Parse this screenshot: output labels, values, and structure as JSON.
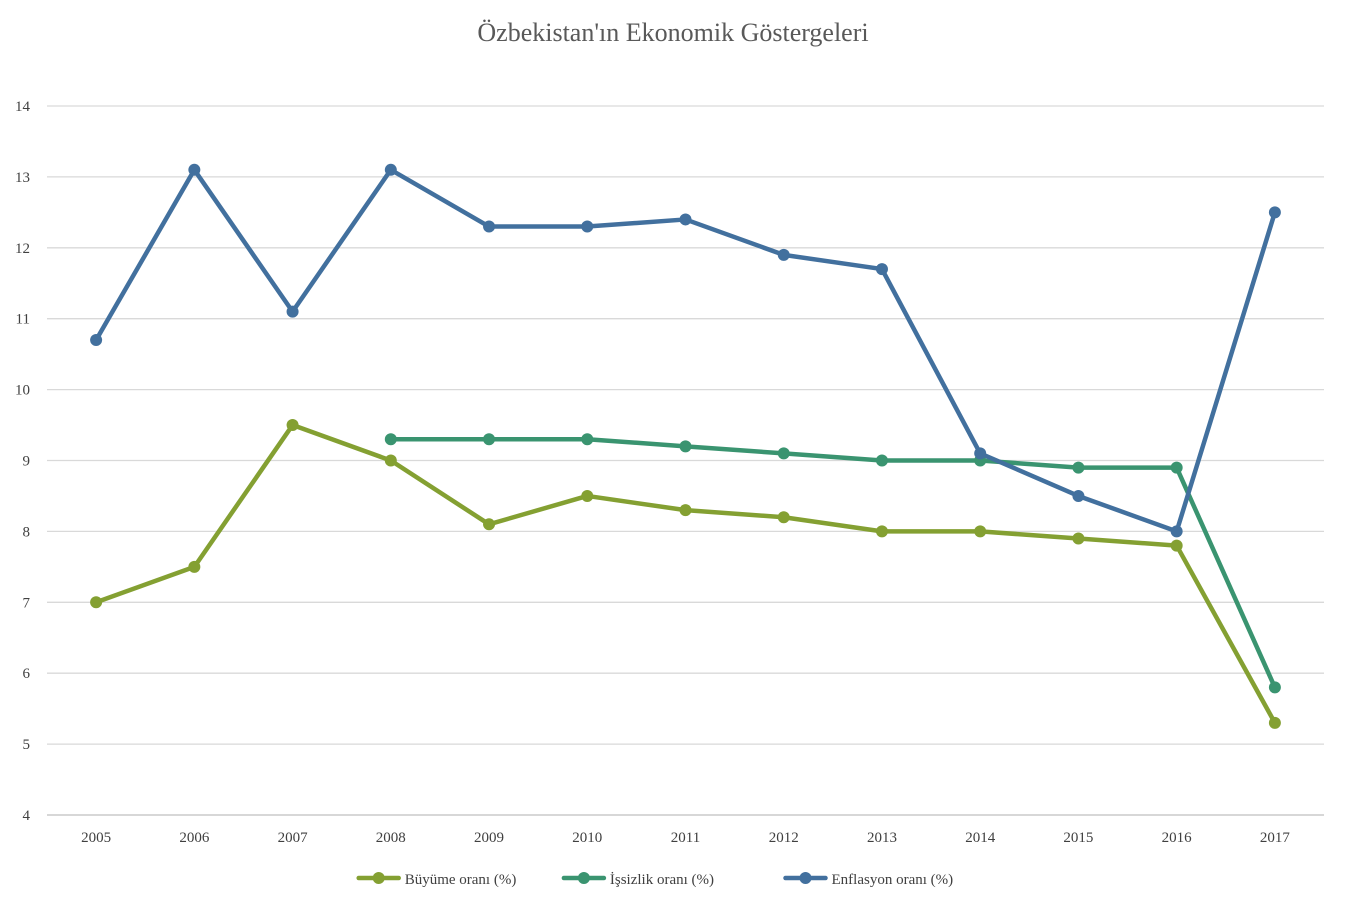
{
  "chart_data": {
    "type": "line",
    "title": "Özbekistan'ın Ekonomik Göstergeleri",
    "xlabel": "",
    "ylabel": "",
    "categories": [
      "2005",
      "2006",
      "2007",
      "2008",
      "2009",
      "2010",
      "2011",
      "2012",
      "2013",
      "2014",
      "2015",
      "2016",
      "2017"
    ],
    "ylim": [
      4,
      14
    ],
    "yticks": [
      4,
      5,
      6,
      7,
      8,
      9,
      10,
      11,
      12,
      13,
      14
    ],
    "grid": true,
    "legend_position": "bottom",
    "series": [
      {
        "name": "Büyüme oranı (%)",
        "color": "#84a032",
        "values": [
          7.0,
          7.5,
          9.5,
          9.0,
          8.1,
          8.5,
          8.3,
          8.2,
          8.0,
          8.0,
          7.9,
          7.8,
          5.3
        ]
      },
      {
        "name": "İşsizlik oranı (%)",
        "color": "#3a9470",
        "values": [
          null,
          null,
          null,
          9.3,
          9.3,
          9.3,
          9.2,
          9.1,
          9.0,
          9.0,
          8.9,
          8.9,
          5.8
        ]
      },
      {
        "name": "Enflasyon oranı (%)",
        "color": "#42709e",
        "values": [
          10.7,
          13.1,
          11.1,
          13.1,
          12.3,
          12.3,
          12.4,
          11.9,
          11.7,
          9.1,
          8.5,
          8.0,
          12.5
        ]
      }
    ]
  }
}
